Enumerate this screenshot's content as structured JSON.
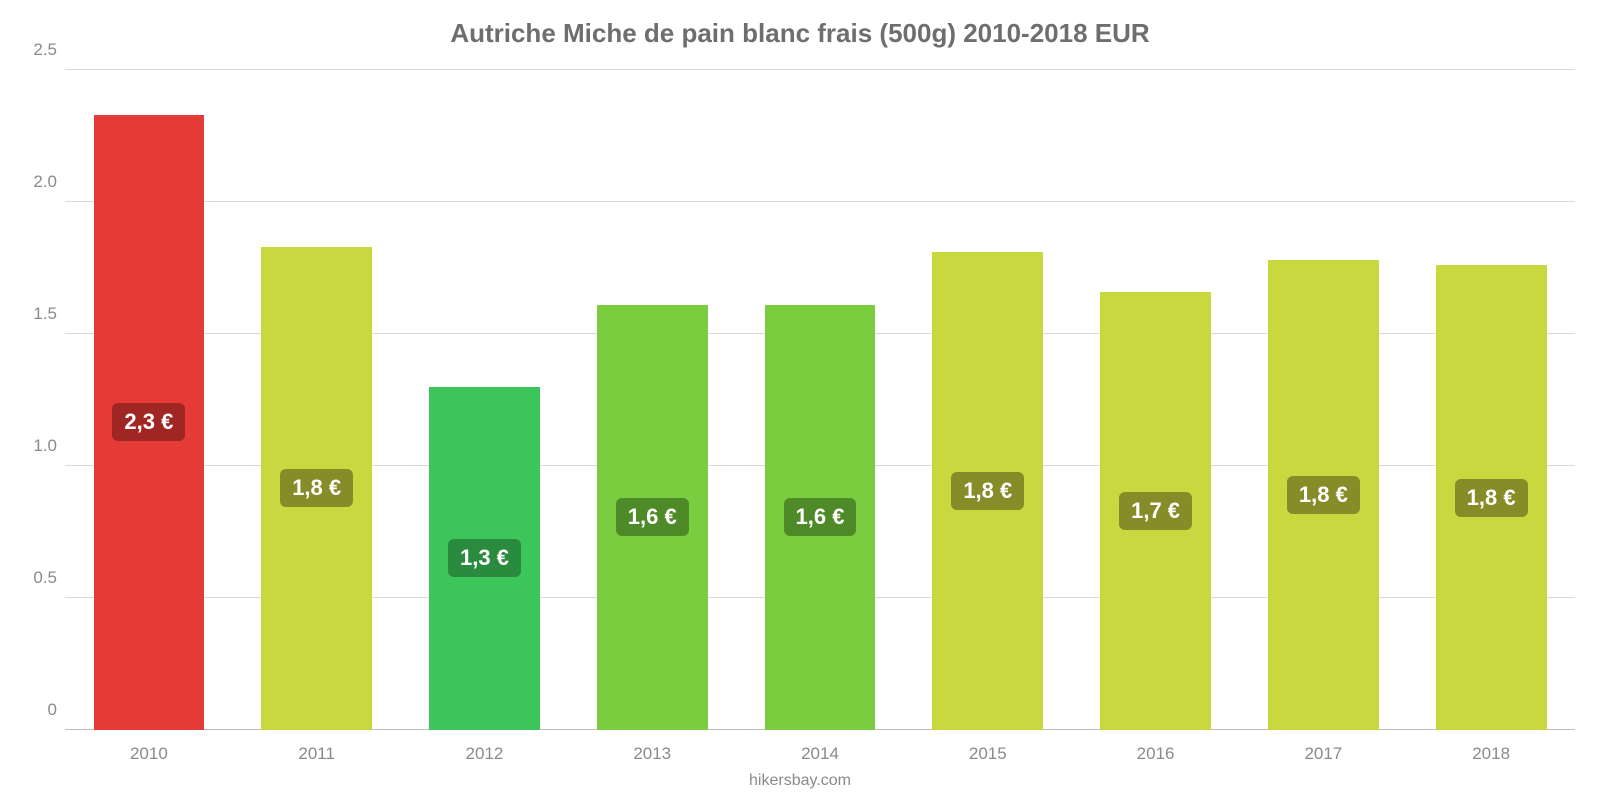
{
  "chart": {
    "type": "bar",
    "title": "Autriche Miche de pain blanc frais (500g) 2010-2018 EUR",
    "title_color": "#6e6e6e",
    "title_fontsize": 26,
    "title_fontweight": 700,
    "background_color": "#ffffff",
    "grid_color": "#d9d9d9",
    "baseline_color": "#bfbfbf",
    "axis_label_color": "#8a8a8a",
    "axis_label_fontsize": 17,
    "ylim": [
      0,
      2.5
    ],
    "ytick_step": 0.5,
    "yticks": [
      "0",
      "0.5",
      "1.0",
      "1.5",
      "2.0",
      "2.5"
    ],
    "categories": [
      "2010",
      "2011",
      "2012",
      "2013",
      "2014",
      "2015",
      "2016",
      "2017",
      "2018"
    ],
    "values": [
      2.33,
      1.83,
      1.3,
      1.61,
      1.61,
      1.81,
      1.66,
      1.78,
      1.76
    ],
    "bar_labels": [
      "2,3 €",
      "1,8 €",
      "1,3 €",
      "1,6 €",
      "1,6 €",
      "1,8 €",
      "1,7 €",
      "1,8 €",
      "1,8 €"
    ],
    "bar_colors": [
      "#e43b37",
      "#c9d83f",
      "#3bc55a",
      "#79cd3f",
      "#79cd3f",
      "#c9d83f",
      "#c9d83f",
      "#c9d83f",
      "#c9d83f"
    ],
    "bar_label_bg": [
      "#a02623",
      "#868c27",
      "#2a8a3e",
      "#4f8a28",
      "#4f8a28",
      "#868c27",
      "#868c27",
      "#868c27",
      "#868c27"
    ],
    "bar_label_color": "#ffffff",
    "bar_label_fontsize": 22,
    "bar_width_pct": 66,
    "credit": "hikersbay.com",
    "credit_color": "#8a8a8a",
    "credit_fontsize": 16
  }
}
